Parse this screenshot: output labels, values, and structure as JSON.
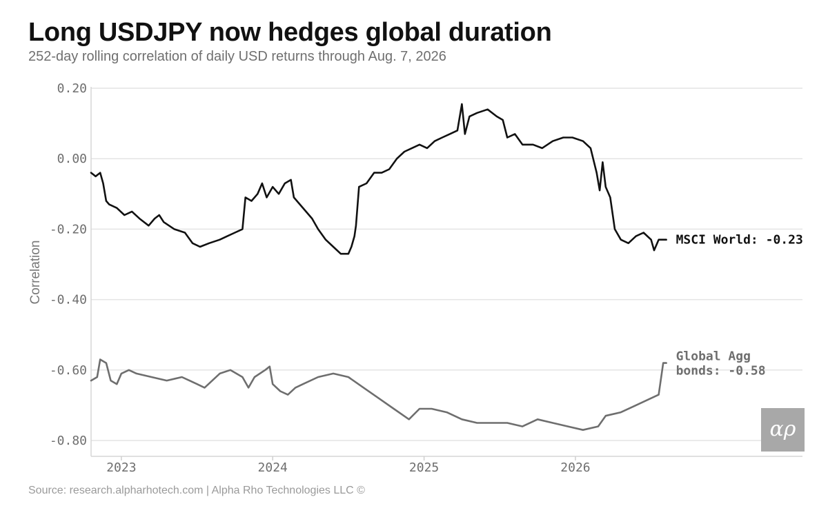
{
  "title": "Long USDJPY now hedges global duration",
  "subtitle": "252-day rolling correlation of daily USD returns through Aug. 7, 2026",
  "source": "Source: research.alpharhotech.com | Alpha Rho Technologies LLC ©",
  "logo_text": "αρ",
  "colors": {
    "msci": "#111111",
    "agg": "#6e6e6e",
    "grid": "#e4e4e4",
    "logo_bg": "#a8a8a8"
  },
  "chart_data": {
    "type": "line",
    "ylabel": "Correlation",
    "ylim": [
      -0.845,
      0.2
    ],
    "yticks": [
      0.2,
      0.0,
      -0.2,
      -0.4,
      -0.6,
      -0.8
    ],
    "ytick_labels": [
      "0.20",
      "0.00",
      "-0.20",
      "-0.40",
      "-0.60",
      "-0.80"
    ],
    "xlim": [
      2022.8,
      2027.5
    ],
    "xticks": [
      2023,
      2024,
      2025,
      2026
    ],
    "xtick_labels": [
      "2023",
      "2024",
      "2025",
      "2026"
    ],
    "grid": true,
    "series": [
      {
        "name": "MSCI World",
        "end_label": "MSCI World: -0.23",
        "points": [
          [
            2022.8,
            -0.04
          ],
          [
            2022.83,
            -0.05
          ],
          [
            2022.86,
            -0.04
          ],
          [
            2022.88,
            -0.07
          ],
          [
            2022.9,
            -0.12
          ],
          [
            2022.92,
            -0.13
          ],
          [
            2022.97,
            -0.14
          ],
          [
            2023.02,
            -0.16
          ],
          [
            2023.07,
            -0.15
          ],
          [
            2023.12,
            -0.17
          ],
          [
            2023.18,
            -0.19
          ],
          [
            2023.22,
            -0.17
          ],
          [
            2023.25,
            -0.16
          ],
          [
            2023.28,
            -0.18
          ],
          [
            2023.35,
            -0.2
          ],
          [
            2023.42,
            -0.21
          ],
          [
            2023.47,
            -0.24
          ],
          [
            2023.52,
            -0.25
          ],
          [
            2023.58,
            -0.24
          ],
          [
            2023.65,
            -0.23
          ],
          [
            2023.7,
            -0.22
          ],
          [
            2023.75,
            -0.21
          ],
          [
            2023.8,
            -0.2
          ],
          [
            2023.82,
            -0.11
          ],
          [
            2023.86,
            -0.12
          ],
          [
            2023.9,
            -0.1
          ],
          [
            2023.93,
            -0.07
          ],
          [
            2023.96,
            -0.11
          ],
          [
            2024.0,
            -0.08
          ],
          [
            2024.04,
            -0.1
          ],
          [
            2024.08,
            -0.07
          ],
          [
            2024.12,
            -0.06
          ],
          [
            2024.14,
            -0.11
          ],
          [
            2024.18,
            -0.13
          ],
          [
            2024.22,
            -0.15
          ],
          [
            2024.26,
            -0.17
          ],
          [
            2024.3,
            -0.2
          ],
          [
            2024.35,
            -0.23
          ],
          [
            2024.4,
            -0.25
          ],
          [
            2024.45,
            -0.27
          ],
          [
            2024.5,
            -0.27
          ],
          [
            2024.52,
            -0.25
          ],
          [
            2024.54,
            -0.22
          ],
          [
            2024.55,
            -0.19
          ],
          [
            2024.57,
            -0.08
          ],
          [
            2024.62,
            -0.07
          ],
          [
            2024.67,
            -0.04
          ],
          [
            2024.72,
            -0.04
          ],
          [
            2024.77,
            -0.03
          ],
          [
            2024.82,
            0.0
          ],
          [
            2024.87,
            0.02
          ],
          [
            2024.92,
            0.03
          ],
          [
            2024.97,
            0.04
          ],
          [
            2025.02,
            0.03
          ],
          [
            2025.07,
            0.05
          ],
          [
            2025.12,
            0.06
          ],
          [
            2025.17,
            0.07
          ],
          [
            2025.22,
            0.08
          ],
          [
            2025.25,
            0.155
          ],
          [
            2025.27,
            0.07
          ],
          [
            2025.3,
            0.12
          ],
          [
            2025.35,
            0.13
          ],
          [
            2025.42,
            0.14
          ],
          [
            2025.48,
            0.12
          ],
          [
            2025.52,
            0.11
          ],
          [
            2025.55,
            0.06
          ],
          [
            2025.6,
            0.07
          ],
          [
            2025.65,
            0.04
          ],
          [
            2025.72,
            0.04
          ],
          [
            2025.78,
            0.03
          ],
          [
            2025.85,
            0.05
          ],
          [
            2025.92,
            0.06
          ],
          [
            2025.98,
            0.06
          ],
          [
            2026.05,
            0.05
          ],
          [
            2026.1,
            0.03
          ],
          [
            2026.14,
            -0.04
          ],
          [
            2026.16,
            -0.09
          ],
          [
            2026.18,
            -0.01
          ],
          [
            2026.2,
            -0.08
          ],
          [
            2026.23,
            -0.11
          ],
          [
            2026.26,
            -0.2
          ],
          [
            2026.3,
            -0.23
          ],
          [
            2026.35,
            -0.24
          ],
          [
            2026.4,
            -0.22
          ],
          [
            2026.45,
            -0.21
          ],
          [
            2026.5,
            -0.23
          ],
          [
            2026.52,
            -0.26
          ],
          [
            2026.55,
            -0.23
          ],
          [
            2026.6,
            -0.23
          ]
        ]
      },
      {
        "name": "Global Agg bonds",
        "end_label": [
          "Global Agg",
          "bonds: -0.58"
        ],
        "points": [
          [
            2022.8,
            -0.63
          ],
          [
            2022.84,
            -0.62
          ],
          [
            2022.86,
            -0.57
          ],
          [
            2022.9,
            -0.58
          ],
          [
            2022.93,
            -0.63
          ],
          [
            2022.97,
            -0.64
          ],
          [
            2023.0,
            -0.61
          ],
          [
            2023.05,
            -0.6
          ],
          [
            2023.1,
            -0.61
          ],
          [
            2023.2,
            -0.62
          ],
          [
            2023.3,
            -0.63
          ],
          [
            2023.4,
            -0.62
          ],
          [
            2023.45,
            -0.63
          ],
          [
            2023.5,
            -0.64
          ],
          [
            2023.55,
            -0.65
          ],
          [
            2023.65,
            -0.61
          ],
          [
            2023.72,
            -0.6
          ],
          [
            2023.8,
            -0.62
          ],
          [
            2023.84,
            -0.65
          ],
          [
            2023.88,
            -0.62
          ],
          [
            2023.95,
            -0.6
          ],
          [
            2023.98,
            -0.59
          ],
          [
            2024.0,
            -0.64
          ],
          [
            2024.05,
            -0.66
          ],
          [
            2024.1,
            -0.67
          ],
          [
            2024.15,
            -0.65
          ],
          [
            2024.2,
            -0.64
          ],
          [
            2024.3,
            -0.62
          ],
          [
            2024.4,
            -0.61
          ],
          [
            2024.5,
            -0.62
          ],
          [
            2024.6,
            -0.65
          ],
          [
            2024.7,
            -0.68
          ],
          [
            2024.8,
            -0.71
          ],
          [
            2024.9,
            -0.74
          ],
          [
            2024.97,
            -0.71
          ],
          [
            2025.05,
            -0.71
          ],
          [
            2025.15,
            -0.72
          ],
          [
            2025.25,
            -0.74
          ],
          [
            2025.35,
            -0.75
          ],
          [
            2025.45,
            -0.75
          ],
          [
            2025.55,
            -0.75
          ],
          [
            2025.65,
            -0.76
          ],
          [
            2025.75,
            -0.74
          ],
          [
            2025.85,
            -0.75
          ],
          [
            2025.95,
            -0.76
          ],
          [
            2026.05,
            -0.77
          ],
          [
            2026.15,
            -0.76
          ],
          [
            2026.2,
            -0.73
          ],
          [
            2026.3,
            -0.72
          ],
          [
            2026.4,
            -0.7
          ],
          [
            2026.5,
            -0.68
          ],
          [
            2026.55,
            -0.67
          ],
          [
            2026.58,
            -0.58
          ],
          [
            2026.6,
            -0.58
          ]
        ]
      }
    ]
  }
}
